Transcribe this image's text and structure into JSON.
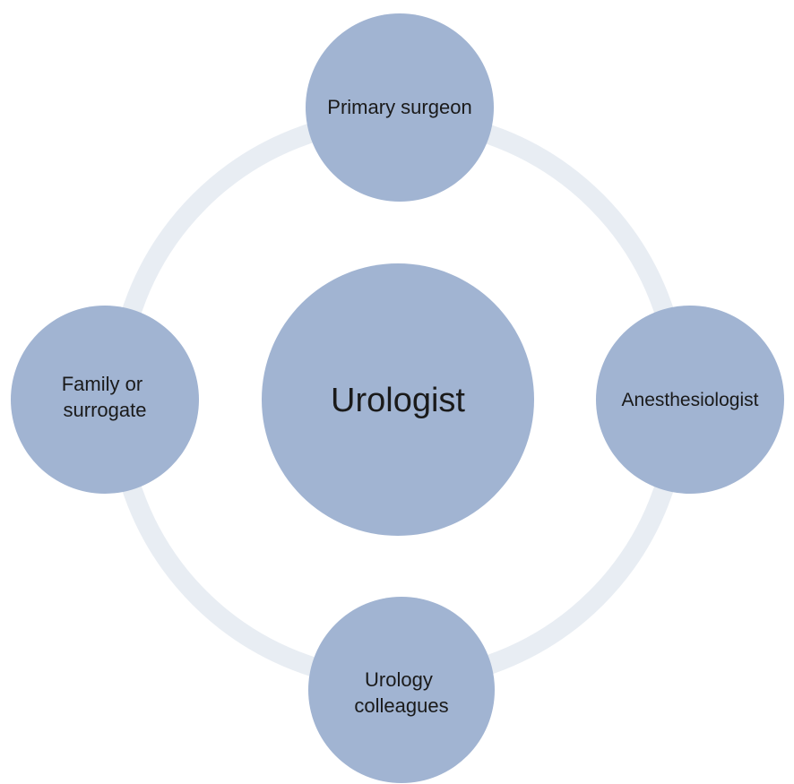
{
  "diagram": {
    "center": {
      "label": "Urologist"
    },
    "nodes": [
      {
        "id": "primary-surgeon",
        "lines": [
          "Primary surgeon"
        ]
      },
      {
        "id": "anesthesiologist",
        "lines": [
          "Anesthesiologist"
        ]
      },
      {
        "id": "urology-colleagues",
        "lines": [
          "Urology",
          "colleagues"
        ]
      },
      {
        "id": "family-or-surrogate",
        "lines": [
          "Family or",
          "surrogate"
        ]
      }
    ],
    "colors": {
      "node_fill": "#a1b4d2",
      "ring": "#e8edf3",
      "text": "#1a1a1a",
      "background": "#ffffff"
    }
  }
}
